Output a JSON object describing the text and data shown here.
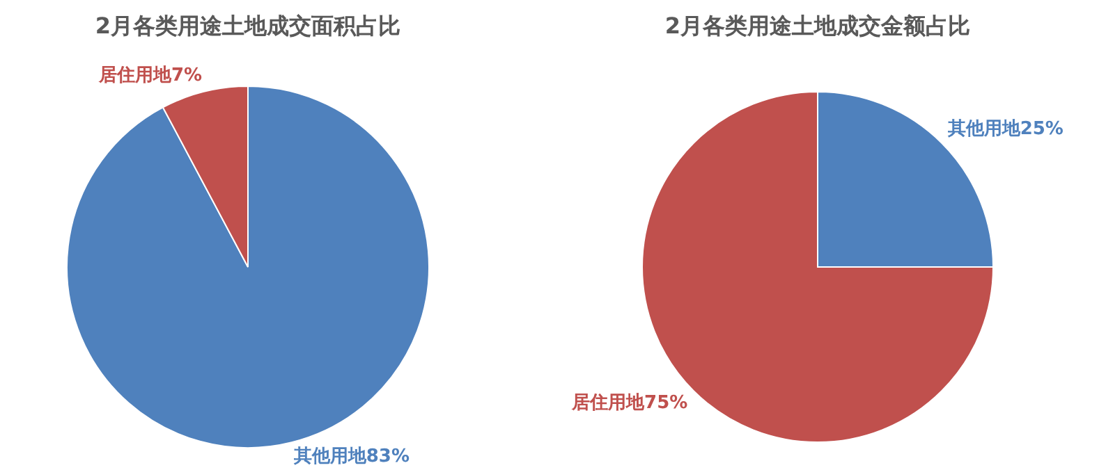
{
  "chart_data": [
    {
      "type": "pie",
      "title": "2月各类用途土地成交面积占比",
      "categories": [
        "其他用地",
        "居住用地"
      ],
      "values": [
        83,
        7
      ],
      "colors": [
        "#4f81bd",
        "#c0504d"
      ],
      "value_labels": [
        "83%",
        "7%"
      ]
    },
    {
      "type": "pie",
      "title": "2月各类用途土地成交金额占比",
      "categories": [
        "其他用地",
        "居住用地"
      ],
      "values": [
        25,
        75
      ],
      "colors": [
        "#4f81bd",
        "#c0504d"
      ],
      "value_labels": [
        "25%",
        "75%"
      ]
    }
  ]
}
